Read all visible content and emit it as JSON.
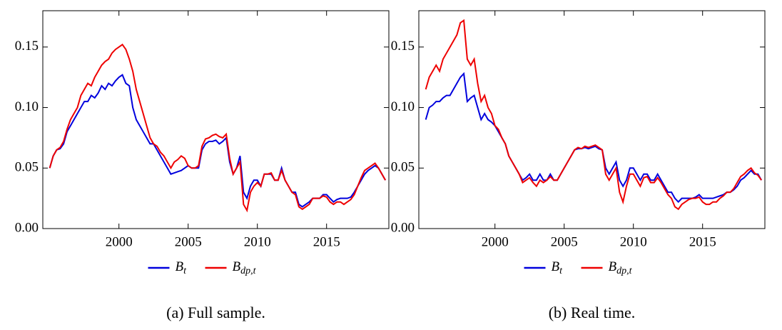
{
  "chart_data": [
    {
      "type": "line",
      "caption": "(a) Full sample.",
      "x": [
        1995,
        1995.25,
        1995.5,
        1995.75,
        1996,
        1996.25,
        1996.5,
        1996.75,
        1997,
        1997.25,
        1997.5,
        1997.75,
        1998,
        1998.25,
        1998.5,
        1998.75,
        1999,
        1999.25,
        1999.5,
        1999.75,
        2000,
        2000.25,
        2000.5,
        2000.75,
        2001,
        2001.25,
        2001.5,
        2001.75,
        2002,
        2002.25,
        2002.5,
        2002.75,
        2003,
        2003.25,
        2003.5,
        2003.75,
        2004,
        2004.25,
        2004.5,
        2004.75,
        2005,
        2005.25,
        2005.5,
        2005.75,
        2006,
        2006.25,
        2006.5,
        2006.75,
        2007,
        2007.25,
        2007.5,
        2007.75,
        2008,
        2008.25,
        2008.5,
        2008.75,
        2009,
        2009.25,
        2009.5,
        2009.75,
        2010,
        2010.25,
        2010.5,
        2010.75,
        2011,
        2011.25,
        2011.5,
        2011.75,
        2012,
        2012.25,
        2012.5,
        2012.75,
        2013,
        2013.25,
        2013.5,
        2013.75,
        2014,
        2014.25,
        2014.5,
        2014.75,
        2015,
        2015.25,
        2015.5,
        2015.75,
        2016,
        2016.25,
        2016.5,
        2016.75,
        2017,
        2017.25,
        2017.5,
        2017.75,
        2018,
        2018.25,
        2018.5,
        2018.75,
        2019,
        2019.25
      ],
      "series": [
        {
          "name": "Bt",
          "color": "#0000dd",
          "values": [
            0.05,
            0.06,
            0.065,
            0.066,
            0.07,
            0.08,
            0.085,
            0.09,
            0.095,
            0.1,
            0.105,
            0.105,
            0.11,
            0.108,
            0.112,
            0.118,
            0.115,
            0.12,
            0.118,
            0.122,
            0.125,
            0.127,
            0.12,
            0.118,
            0.1,
            0.09,
            0.085,
            0.08,
            0.075,
            0.07,
            0.07,
            0.065,
            0.06,
            0.055,
            0.05,
            0.045,
            0.046,
            0.047,
            0.048,
            0.05,
            0.052,
            0.05,
            0.05,
            0.05,
            0.065,
            0.07,
            0.072,
            0.072,
            0.073,
            0.07,
            0.072,
            0.075,
            0.055,
            0.045,
            0.05,
            0.06,
            0.03,
            0.025,
            0.035,
            0.04,
            0.04,
            0.035,
            0.045,
            0.045,
            0.045,
            0.04,
            0.04,
            0.05,
            0.04,
            0.035,
            0.03,
            0.03,
            0.02,
            0.018,
            0.02,
            0.022,
            0.025,
            0.025,
            0.025,
            0.028,
            0.028,
            0.025,
            0.022,
            0.024,
            0.025,
            0.025,
            0.025,
            0.026,
            0.03,
            0.035,
            0.04,
            0.045,
            0.048,
            0.05,
            0.052,
            0.05,
            0.045,
            0.04
          ]
        },
        {
          "name": "Bdp,t",
          "color": "#ee0000",
          "values": [
            0.05,
            0.06,
            0.065,
            0.067,
            0.072,
            0.082,
            0.09,
            0.095,
            0.1,
            0.11,
            0.115,
            0.12,
            0.118,
            0.125,
            0.13,
            0.135,
            0.138,
            0.14,
            0.145,
            0.148,
            0.15,
            0.152,
            0.148,
            0.14,
            0.13,
            0.115,
            0.105,
            0.095,
            0.085,
            0.075,
            0.07,
            0.068,
            0.063,
            0.06,
            0.055,
            0.05,
            0.055,
            0.057,
            0.06,
            0.058,
            0.052,
            0.05,
            0.05,
            0.052,
            0.068,
            0.074,
            0.075,
            0.077,
            0.078,
            0.076,
            0.075,
            0.078,
            0.058,
            0.045,
            0.05,
            0.055,
            0.02,
            0.015,
            0.03,
            0.035,
            0.038,
            0.035,
            0.045,
            0.045,
            0.046,
            0.04,
            0.04,
            0.048,
            0.04,
            0.035,
            0.03,
            0.028,
            0.018,
            0.016,
            0.018,
            0.02,
            0.025,
            0.025,
            0.025,
            0.027,
            0.026,
            0.022,
            0.02,
            0.022,
            0.022,
            0.02,
            0.022,
            0.024,
            0.028,
            0.035,
            0.042,
            0.048,
            0.05,
            0.052,
            0.054,
            0.05,
            0.045,
            0.04
          ]
        }
      ],
      "xlim": [
        1994.5,
        2019.5
      ],
      "xticks": [
        2000,
        2005,
        2010,
        2015
      ],
      "ylim": [
        0,
        0.18
      ],
      "yticks": [
        {
          "value": 0,
          "label": "0.00"
        },
        {
          "value": 0.05,
          "label": "0.05"
        },
        {
          "value": 0.1,
          "label": "0.10"
        },
        {
          "value": 0.15,
          "label": "0.15"
        }
      ]
    },
    {
      "type": "line",
      "caption": "(b) Real time.",
      "x": [
        1995,
        1995.25,
        1995.5,
        1995.75,
        1996,
        1996.25,
        1996.5,
        1996.75,
        1997,
        1997.25,
        1997.5,
        1997.75,
        1998,
        1998.25,
        1998.5,
        1998.75,
        1999,
        1999.25,
        1999.5,
        1999.75,
        2000,
        2000.25,
        2000.5,
        2000.75,
        2001,
        2001.25,
        2001.5,
        2001.75,
        2002,
        2002.25,
        2002.5,
        2002.75,
        2003,
        2003.25,
        2003.5,
        2003.75,
        2004,
        2004.25,
        2004.5,
        2004.75,
        2005,
        2005.25,
        2005.5,
        2005.75,
        2006,
        2006.25,
        2006.5,
        2006.75,
        2007,
        2007.25,
        2007.5,
        2007.75,
        2008,
        2008.25,
        2008.5,
        2008.75,
        2009,
        2009.25,
        2009.5,
        2009.75,
        2010,
        2010.25,
        2010.5,
        2010.75,
        2011,
        2011.25,
        2011.5,
        2011.75,
        2012,
        2012.25,
        2012.5,
        2012.75,
        2013,
        2013.25,
        2013.5,
        2013.75,
        2014,
        2014.25,
        2014.5,
        2014.75,
        2015,
        2015.25,
        2015.5,
        2015.75,
        2016,
        2016.25,
        2016.5,
        2016.75,
        2017,
        2017.25,
        2017.5,
        2017.75,
        2018,
        2018.25,
        2018.5,
        2018.75,
        2019,
        2019.25
      ],
      "series": [
        {
          "name": "Bt",
          "color": "#0000dd",
          "values": [
            0.09,
            0.1,
            0.102,
            0.105,
            0.105,
            0.108,
            0.11,
            0.11,
            0.115,
            0.12,
            0.125,
            0.128,
            0.105,
            0.108,
            0.11,
            0.1,
            0.09,
            0.095,
            0.09,
            0.088,
            0.085,
            0.08,
            0.075,
            0.07,
            0.06,
            0.055,
            0.05,
            0.045,
            0.04,
            0.042,
            0.045,
            0.04,
            0.04,
            0.045,
            0.04,
            0.04,
            0.045,
            0.04,
            0.04,
            0.045,
            0.05,
            0.055,
            0.06,
            0.065,
            0.066,
            0.066,
            0.067,
            0.066,
            0.067,
            0.068,
            0.066,
            0.065,
            0.05,
            0.045,
            0.05,
            0.055,
            0.04,
            0.035,
            0.04,
            0.05,
            0.05,
            0.045,
            0.04,
            0.045,
            0.045,
            0.04,
            0.04,
            0.045,
            0.04,
            0.035,
            0.03,
            0.03,
            0.025,
            0.022,
            0.025,
            0.025,
            0.025,
            0.025,
            0.026,
            0.028,
            0.025,
            0.025,
            0.025,
            0.025,
            0.026,
            0.027,
            0.028,
            0.03,
            0.03,
            0.032,
            0.035,
            0.04,
            0.042,
            0.045,
            0.048,
            0.045,
            0.045,
            0.04
          ]
        },
        {
          "name": "Bdp,t",
          "color": "#ee0000",
          "values": [
            0.115,
            0.125,
            0.13,
            0.135,
            0.13,
            0.14,
            0.145,
            0.15,
            0.155,
            0.16,
            0.17,
            0.172,
            0.14,
            0.135,
            0.14,
            0.12,
            0.105,
            0.11,
            0.1,
            0.095,
            0.085,
            0.082,
            0.075,
            0.07,
            0.06,
            0.055,
            0.05,
            0.045,
            0.038,
            0.04,
            0.042,
            0.038,
            0.035,
            0.04,
            0.038,
            0.04,
            0.043,
            0.04,
            0.04,
            0.045,
            0.05,
            0.055,
            0.06,
            0.065,
            0.067,
            0.066,
            0.068,
            0.067,
            0.068,
            0.069,
            0.067,
            0.065,
            0.045,
            0.04,
            0.045,
            0.05,
            0.03,
            0.022,
            0.035,
            0.045,
            0.045,
            0.04,
            0.035,
            0.042,
            0.043,
            0.038,
            0.038,
            0.042,
            0.038,
            0.033,
            0.028,
            0.025,
            0.018,
            0.016,
            0.02,
            0.022,
            0.024,
            0.025,
            0.025,
            0.026,
            0.022,
            0.02,
            0.02,
            0.022,
            0.022,
            0.025,
            0.027,
            0.03,
            0.03,
            0.033,
            0.038,
            0.043,
            0.045,
            0.048,
            0.05,
            0.046,
            0.044,
            0.04
          ]
        }
      ],
      "xlim": [
        1994.5,
        2019.5
      ],
      "xticks": [
        2000,
        2005,
        2010,
        2015
      ],
      "ylim": [
        0,
        0.18
      ],
      "yticks": [
        {
          "value": 0,
          "label": "0.00"
        },
        {
          "value": 0.05,
          "label": "0.05"
        },
        {
          "value": 0.1,
          "label": "0.10"
        },
        {
          "value": 0.15,
          "label": "0.15"
        }
      ]
    }
  ]
}
